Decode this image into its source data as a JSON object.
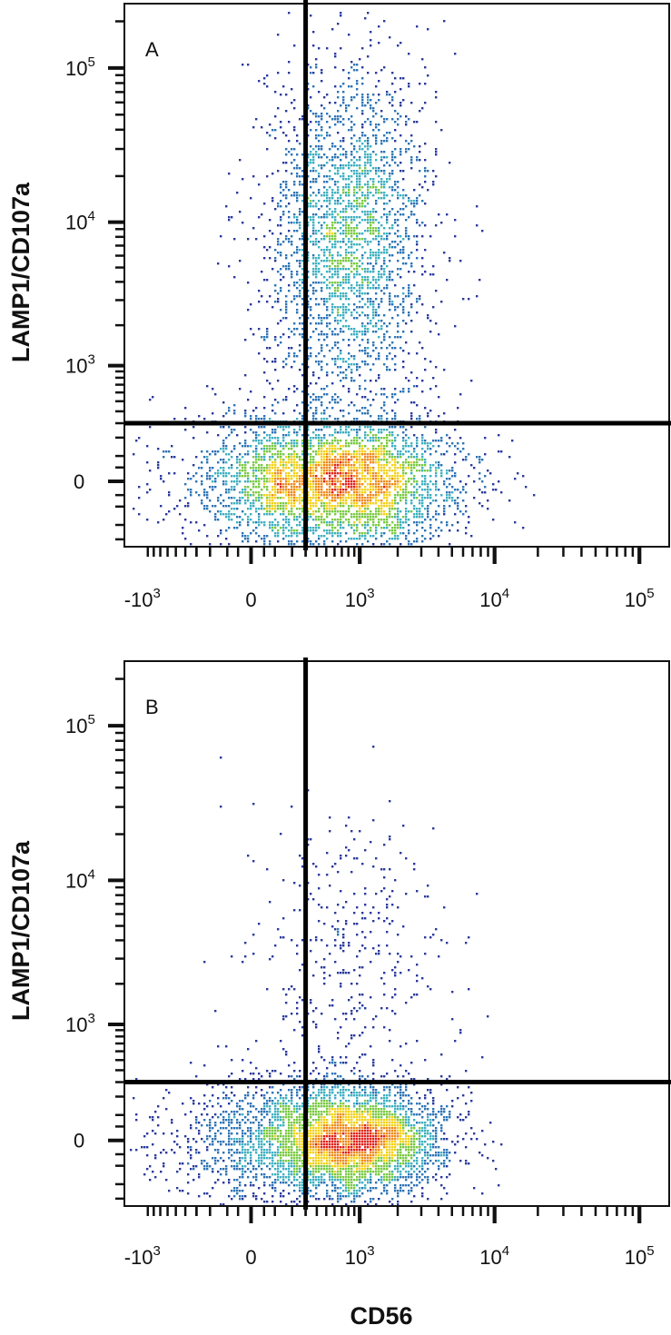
{
  "chart_data": [
    {
      "type": "scatter",
      "subtype": "flow-cytometry-density-dot-plot",
      "panel_label": "A",
      "ylabel": "LAMP1/CD107a",
      "xlabel": "",
      "x_scale": "biexponential",
      "y_scale": "biexponential",
      "x_ticks": [
        {
          "value": -1000,
          "base": "-10",
          "exp": "3"
        },
        {
          "value": 0,
          "base": "0",
          "exp": ""
        },
        {
          "value": 1000,
          "base": "10",
          "exp": "3"
        },
        {
          "value": 10000,
          "base": "10",
          "exp": "4"
        },
        {
          "value": 100000,
          "base": "10",
          "exp": "5"
        }
      ],
      "y_ticks": [
        {
          "value": 0,
          "base": "0",
          "exp": ""
        },
        {
          "value": 1000,
          "base": "10",
          "exp": "3"
        },
        {
          "value": 10000,
          "base": "10",
          "exp": "4"
        },
        {
          "value": 100000,
          "base": "10",
          "exp": "5"
        }
      ],
      "quadrant_gate": {
        "x": 300,
        "y": 300
      },
      "density_clusters": [
        {
          "x_center": 1000,
          "y_center": 0,
          "relative_density": 1.0,
          "spread": "broad"
        },
        {
          "x_center": 150,
          "y_center": 0,
          "relative_density": 0.55,
          "spread": "broad"
        },
        {
          "x_center": 800,
          "y_center": 8000,
          "relative_density": 0.45,
          "spread": "vertical-elongated"
        }
      ],
      "grid": false,
      "legend": "none"
    },
    {
      "type": "scatter",
      "subtype": "flow-cytometry-density-dot-plot",
      "panel_label": "B",
      "ylabel": "LAMP1/CD107a",
      "xlabel": "CD56",
      "x_scale": "biexponential",
      "y_scale": "biexponential",
      "x_ticks": [
        {
          "value": -1000,
          "base": "-10",
          "exp": "3"
        },
        {
          "value": 0,
          "base": "0",
          "exp": ""
        },
        {
          "value": 1000,
          "base": "10",
          "exp": "3"
        },
        {
          "value": 10000,
          "base": "10",
          "exp": "4"
        },
        {
          "value": 100000,
          "base": "10",
          "exp": "5"
        }
      ],
      "y_ticks": [
        {
          "value": 0,
          "base": "0",
          "exp": ""
        },
        {
          "value": 1000,
          "base": "10",
          "exp": "3"
        },
        {
          "value": 10000,
          "base": "10",
          "exp": "4"
        },
        {
          "value": 100000,
          "base": "10",
          "exp": "5"
        }
      ],
      "quadrant_gate": {
        "x": 300,
        "y": 300
      },
      "density_clusters": [
        {
          "x_center": 1000,
          "y_center": 0,
          "relative_density": 1.0,
          "spread": "dense"
        },
        {
          "x_center": 100,
          "y_center": 0,
          "relative_density": 0.5,
          "spread": "broad"
        },
        {
          "x_center": 800,
          "y_center": 3000,
          "relative_density": 0.1,
          "spread": "sparse"
        }
      ],
      "grid": false,
      "legend": "none"
    }
  ],
  "colors": {
    "density_scale": [
      "#2b3a9c",
      "#2e74b5",
      "#3fb0c0",
      "#7ac943",
      "#f2d21b",
      "#f08a1c",
      "#e3211c"
    ],
    "frame": "#111111",
    "gate_line": "#000000"
  }
}
